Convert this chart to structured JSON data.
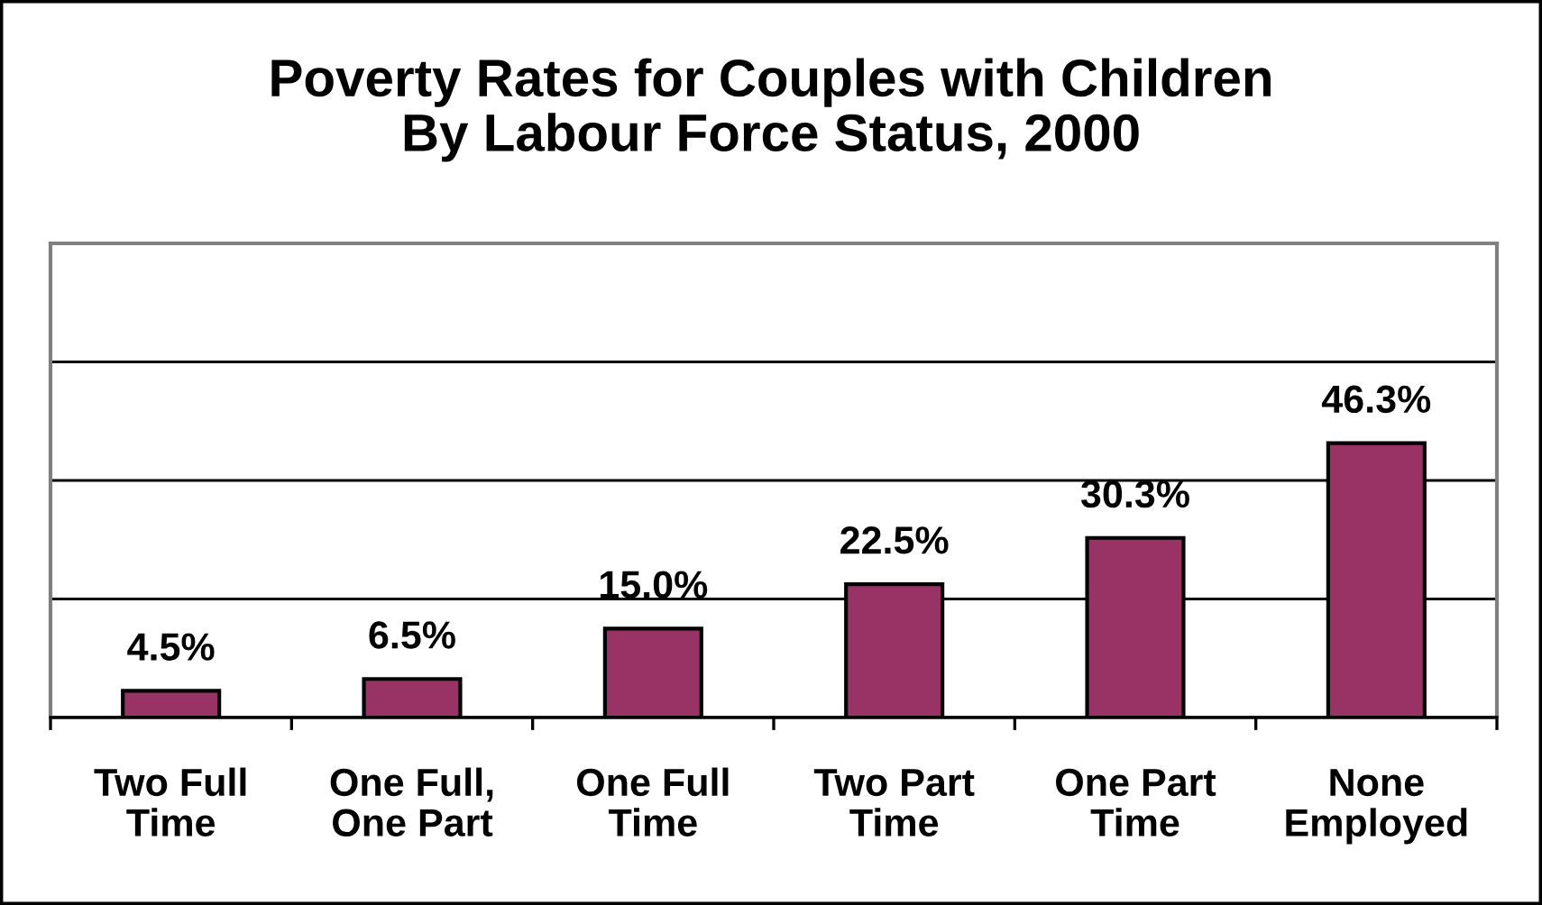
{
  "chart_data": {
    "type": "bar",
    "title": "Poverty Rates for Couples with Children\nBy Labour Force Status, 2000",
    "categories": [
      "Two Full\nTime",
      "One Full,\nOne Part",
      "One Full\nTime",
      "Two Part\nTime",
      "One Part\nTime",
      "None\nEmployed"
    ],
    "values": [
      4.5,
      6.5,
      15.0,
      22.5,
      30.3,
      46.3
    ],
    "value_labels": [
      "4.5%",
      "6.5%",
      "15.0%",
      "22.5%",
      "30.3%",
      "46.3%"
    ],
    "color": "#993366",
    "ylim": [
      0,
      80
    ],
    "yticks": [
      {
        "value": 0,
        "label": null
      },
      {
        "value": 20,
        "label": null
      },
      {
        "value": 40,
        "label": null
      },
      {
        "value": 60,
        "label": null
      },
      {
        "value": 80,
        "label": null
      }
    ],
    "grid": "y",
    "tick_labels": "x"
  }
}
